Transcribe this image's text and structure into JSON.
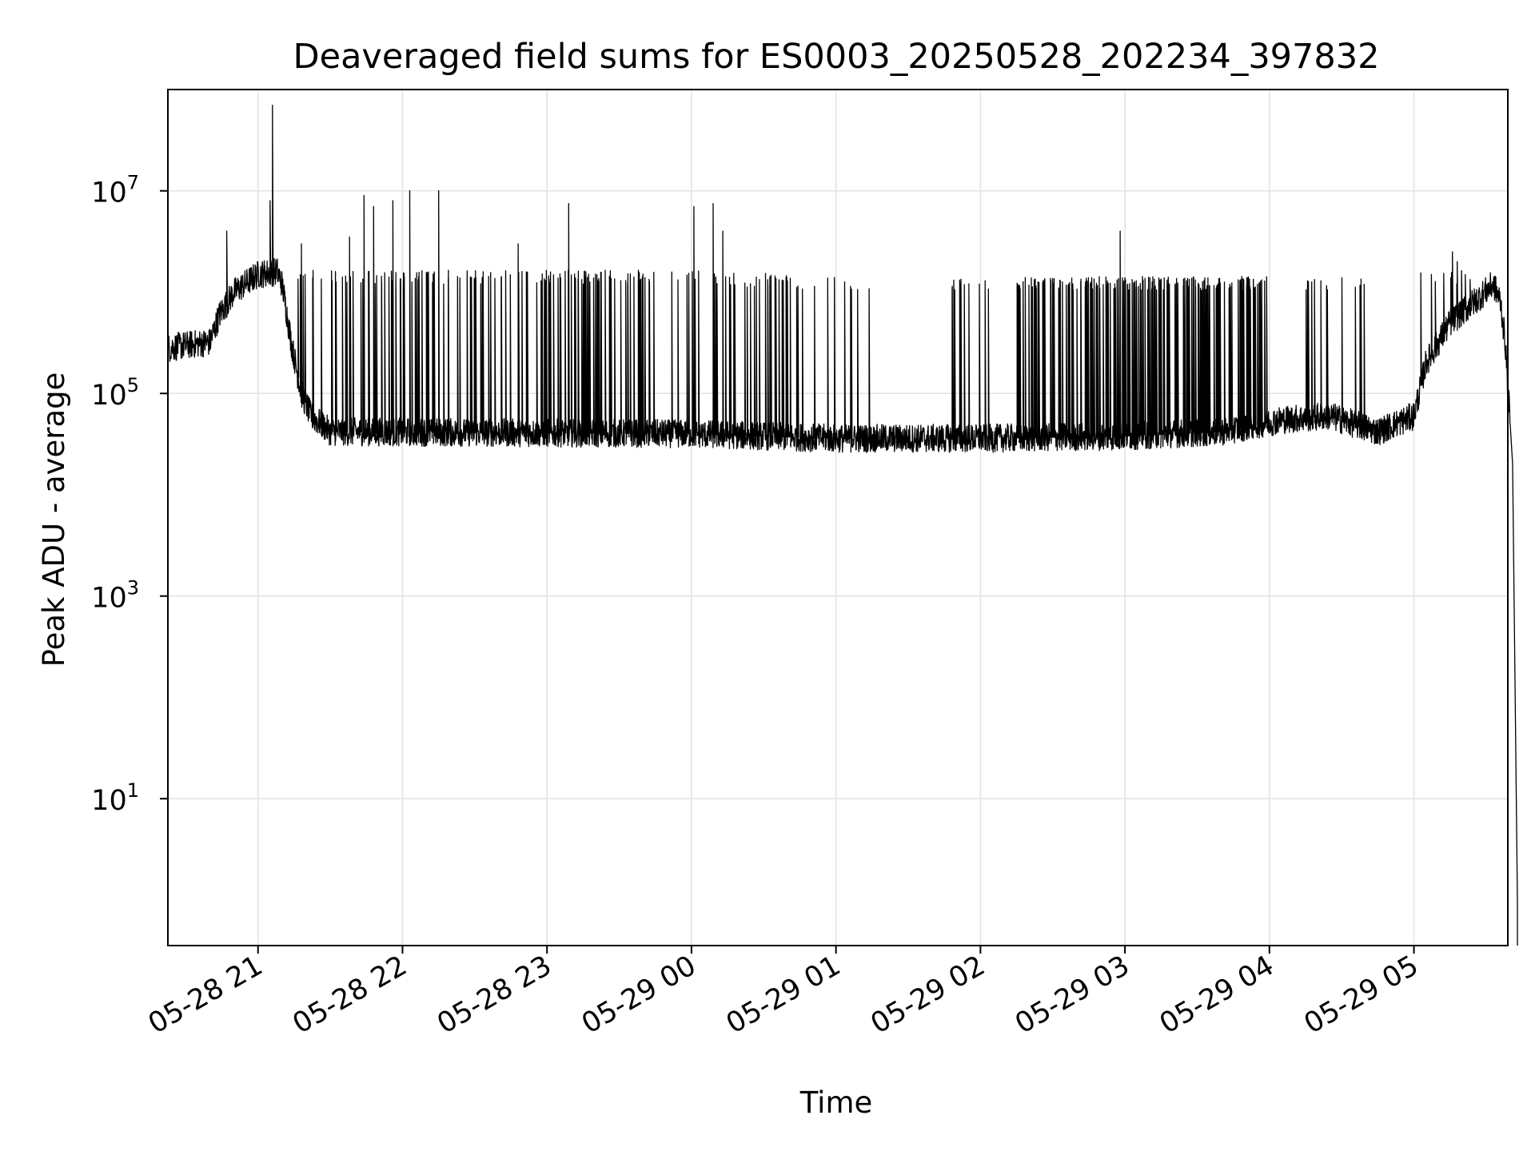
{
  "chart_data": {
    "type": "line",
    "title": "Deaveraged field sums for ES0003_20250528_202234_397832",
    "xlabel": "Time",
    "ylabel": "Peak ADU - average",
    "yscale": "log",
    "ylim_exponent": [
      -0.45,
      8.0
    ],
    "y_ticks": [
      {
        "base": "10",
        "exp": "1",
        "value": 10
      },
      {
        "base": "10",
        "exp": "3",
        "value": 1000
      },
      {
        "base": "10",
        "exp": "5",
        "value": 100000
      },
      {
        "base": "10",
        "exp": "7",
        "value": 10000000
      }
    ],
    "x_range": [
      "2025-05-28T20:22:34",
      "2025-05-29T05:39:00"
    ],
    "x_ticks": [
      {
        "label": "05-28 21",
        "t": "2025-05-28T21:00:00"
      },
      {
        "label": "05-28 22",
        "t": "2025-05-28T22:00:00"
      },
      {
        "label": "05-28 23",
        "t": "2025-05-28T23:00:00"
      },
      {
        "label": "05-29 00",
        "t": "2025-05-29T00:00:00"
      },
      {
        "label": "05-29 01",
        "t": "2025-05-29T01:00:00"
      },
      {
        "label": "05-29 02",
        "t": "2025-05-29T02:00:00"
      },
      {
        "label": "05-29 03",
        "t": "2025-05-29T03:00:00"
      },
      {
        "label": "05-29 04",
        "t": "2025-05-29T04:00:00"
      },
      {
        "label": "05-29 05",
        "t": "2025-05-29T05:00:00"
      }
    ],
    "grid": true,
    "series": [
      {
        "color": "#000000",
        "baseline_points": [
          [
            "2025-05-28T20:22:34",
            280000
          ],
          [
            "2025-05-28T20:30:00",
            300000
          ],
          [
            "2025-05-28T20:40:00",
            320000
          ],
          [
            "2025-05-28T20:44:00",
            600000
          ],
          [
            "2025-05-28T20:50:00",
            1000000
          ],
          [
            "2025-05-28T21:00:00",
            1500000
          ],
          [
            "2025-05-28T21:08:00",
            1600000
          ],
          [
            "2025-05-28T21:10:00",
            1200000
          ],
          [
            "2025-05-28T21:14:00",
            300000
          ],
          [
            "2025-05-28T21:18:00",
            100000
          ],
          [
            "2025-05-28T21:22:00",
            60000
          ],
          [
            "2025-05-28T21:30:00",
            42000
          ],
          [
            "2025-05-29T00:00:00",
            40000
          ],
          [
            "2025-05-29T01:00:00",
            36000
          ],
          [
            "2025-05-29T02:00:00",
            36000
          ],
          [
            "2025-05-29T03:00:00",
            38000
          ],
          [
            "2025-05-29T03:40:00",
            42000
          ],
          [
            "2025-05-29T04:05:00",
            55000
          ],
          [
            "2025-05-29T04:25:00",
            60000
          ],
          [
            "2025-05-29T04:45:00",
            42000
          ],
          [
            "2025-05-29T05:00:00",
            60000
          ],
          [
            "2025-05-29T05:05:00",
            200000
          ],
          [
            "2025-05-29T05:15:00",
            500000
          ],
          [
            "2025-05-29T05:25:00",
            800000
          ],
          [
            "2025-05-29T05:33:00",
            1200000
          ],
          [
            "2025-05-29T05:36:00",
            800000
          ],
          [
            "2025-05-29T05:38:00",
            300000
          ],
          [
            "2025-05-29T05:41:00",
            20000
          ],
          [
            "2025-05-29T05:43:00",
            1
          ]
        ],
        "spikes": [
          [
            "2025-05-28T20:47:00",
            4000000
          ],
          [
            "2025-05-28T21:06:00",
            70000000
          ],
          [
            "2025-05-28T21:05:00",
            8000000
          ],
          [
            "2025-05-28T21:18:00",
            3000000
          ],
          [
            "2025-05-28T21:38:00",
            3500000
          ],
          [
            "2025-05-28T21:44:00",
            9000000
          ],
          [
            "2025-05-28T21:48:00",
            7000000
          ],
          [
            "2025-05-28T21:56:00",
            8000000
          ],
          [
            "2025-05-28T22:03:00",
            10000000
          ],
          [
            "2025-05-28T22:15:00",
            10000000
          ],
          [
            "2025-05-28T22:48:00",
            3000000
          ],
          [
            "2025-05-28T23:09:00",
            7500000
          ],
          [
            "2025-05-29T00:01:00",
            7000000
          ],
          [
            "2025-05-29T00:09:00",
            7500000
          ],
          [
            "2025-05-29T00:13:00",
            4000000
          ],
          [
            "2025-05-29T02:58:00",
            4000000
          ],
          [
            "2025-05-29T05:16:00",
            2500000
          ],
          [
            "2025-05-29T05:18:00",
            2000000
          ]
        ],
        "dense_bursts": [
          {
            "t0": "2025-05-28T21:15:00",
            "t1": "2025-05-29T00:15:00",
            "high": 1500000,
            "count": 150
          },
          {
            "t0": "2025-05-29T00:15:00",
            "t1": "2025-05-29T00:40:00",
            "high": 1400000,
            "count": 25
          },
          {
            "t0": "2025-05-29T00:40:00",
            "t1": "2025-05-29T01:20:00",
            "high": 1300000,
            "count": 12
          },
          {
            "t0": "2025-05-29T01:48:00",
            "t1": "2025-05-29T02:05:00",
            "high": 1300000,
            "count": 12
          },
          {
            "t0": "2025-05-29T02:15:00",
            "t1": "2025-05-29T04:00:00",
            "high": 1300000,
            "count": 210
          },
          {
            "t0": "2025-05-29T04:10:00",
            "t1": "2025-05-29T04:40:00",
            "high": 1300000,
            "count": 14
          },
          {
            "t0": "2025-05-29T05:02:00",
            "t1": "2025-05-29T05:25:00",
            "high": 1500000,
            "count": 10
          }
        ]
      }
    ]
  }
}
